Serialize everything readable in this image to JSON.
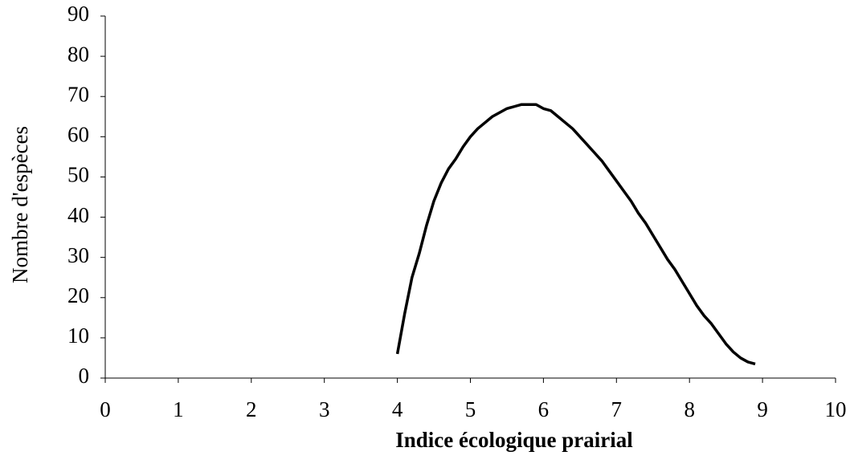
{
  "chart_data": {
    "type": "line",
    "xlabel": "Indice écologique prairial",
    "ylabel": "Nombre d'espèces",
    "x": [
      4.0,
      4.1,
      4.2,
      4.3,
      4.4,
      4.5,
      4.6,
      4.7,
      4.8,
      4.9,
      5.0,
      5.1,
      5.2,
      5.3,
      5.4,
      5.5,
      5.6,
      5.7,
      5.8,
      5.9,
      6.0,
      6.1,
      6.2,
      6.3,
      6.4,
      6.5,
      6.6,
      6.7,
      6.8,
      6.9,
      7.0,
      7.1,
      7.2,
      7.3,
      7.4,
      7.5,
      7.6,
      7.7,
      7.8,
      7.9,
      8.0,
      8.1,
      8.2,
      8.3,
      8.4,
      8.5,
      8.6,
      8.7,
      8.8,
      8.9
    ],
    "series": [
      {
        "color": "#000000",
        "values": [
          6,
          16,
          25,
          31,
          38,
          44,
          48.5,
          52,
          54.5,
          57.5,
          60,
          62,
          63.5,
          65,
          66,
          67,
          67.5,
          68,
          68,
          68,
          67,
          66.5,
          65,
          63.5,
          62,
          60,
          58,
          56,
          54,
          51.5,
          49,
          46.5,
          44,
          41,
          38.5,
          35.5,
          32.5,
          29.5,
          27,
          24,
          21,
          18,
          15.5,
          13.5,
          11,
          8.5,
          6.5,
          5,
          4,
          3.5
        ]
      }
    ],
    "xlim": [
      0,
      10
    ],
    "xticks": [
      0,
      1,
      2,
      3,
      4,
      5,
      6,
      7,
      8,
      9,
      10
    ],
    "ylim": [
      0,
      90
    ],
    "yticks": [
      0,
      10,
      20,
      30,
      40,
      50,
      60,
      70,
      80,
      90
    ],
    "grid": false
  }
}
